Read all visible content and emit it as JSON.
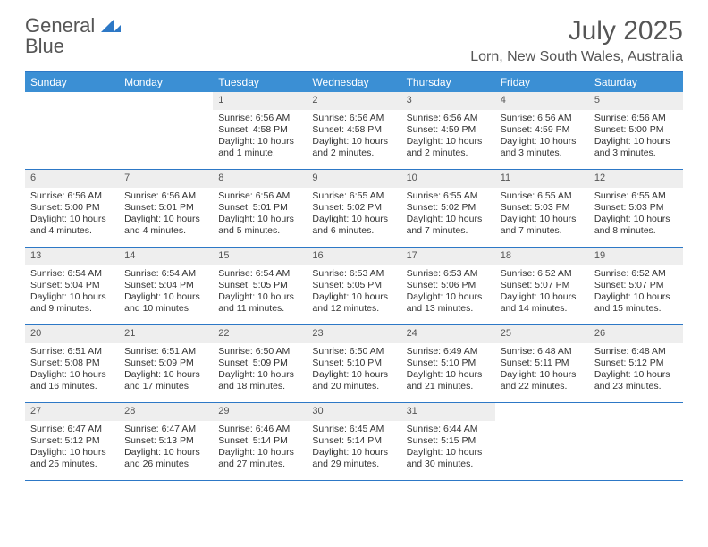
{
  "logo": {
    "word1": "General",
    "word2": "Blue"
  },
  "title": "July 2025",
  "location": "Lorn, New South Wales, Australia",
  "colors": {
    "header_bg": "#3b8fd4",
    "header_border": "#2d78c6",
    "daynum_bg": "#eeeeee",
    "text": "#333333",
    "title_text": "#555555"
  },
  "typography": {
    "title_fontsize": 30,
    "location_fontsize": 16,
    "body_fontsize": 10.5
  },
  "day_names": [
    "Sunday",
    "Monday",
    "Tuesday",
    "Wednesday",
    "Thursday",
    "Friday",
    "Saturday"
  ],
  "grid": {
    "columns": 7,
    "rows": 5,
    "leading_blanks": 2
  },
  "days": [
    {
      "n": 1,
      "sunrise": "6:56 AM",
      "sunset": "4:58 PM",
      "daylight": "10 hours and 1 minute."
    },
    {
      "n": 2,
      "sunrise": "6:56 AM",
      "sunset": "4:58 PM",
      "daylight": "10 hours and 2 minutes."
    },
    {
      "n": 3,
      "sunrise": "6:56 AM",
      "sunset": "4:59 PM",
      "daylight": "10 hours and 2 minutes."
    },
    {
      "n": 4,
      "sunrise": "6:56 AM",
      "sunset": "4:59 PM",
      "daylight": "10 hours and 3 minutes."
    },
    {
      "n": 5,
      "sunrise": "6:56 AM",
      "sunset": "5:00 PM",
      "daylight": "10 hours and 3 minutes."
    },
    {
      "n": 6,
      "sunrise": "6:56 AM",
      "sunset": "5:00 PM",
      "daylight": "10 hours and 4 minutes."
    },
    {
      "n": 7,
      "sunrise": "6:56 AM",
      "sunset": "5:01 PM",
      "daylight": "10 hours and 4 minutes."
    },
    {
      "n": 8,
      "sunrise": "6:56 AM",
      "sunset": "5:01 PM",
      "daylight": "10 hours and 5 minutes."
    },
    {
      "n": 9,
      "sunrise": "6:55 AM",
      "sunset": "5:02 PM",
      "daylight": "10 hours and 6 minutes."
    },
    {
      "n": 10,
      "sunrise": "6:55 AM",
      "sunset": "5:02 PM",
      "daylight": "10 hours and 7 minutes."
    },
    {
      "n": 11,
      "sunrise": "6:55 AM",
      "sunset": "5:03 PM",
      "daylight": "10 hours and 7 minutes."
    },
    {
      "n": 12,
      "sunrise": "6:55 AM",
      "sunset": "5:03 PM",
      "daylight": "10 hours and 8 minutes."
    },
    {
      "n": 13,
      "sunrise": "6:54 AM",
      "sunset": "5:04 PM",
      "daylight": "10 hours and 9 minutes."
    },
    {
      "n": 14,
      "sunrise": "6:54 AM",
      "sunset": "5:04 PM",
      "daylight": "10 hours and 10 minutes."
    },
    {
      "n": 15,
      "sunrise": "6:54 AM",
      "sunset": "5:05 PM",
      "daylight": "10 hours and 11 minutes."
    },
    {
      "n": 16,
      "sunrise": "6:53 AM",
      "sunset": "5:05 PM",
      "daylight": "10 hours and 12 minutes."
    },
    {
      "n": 17,
      "sunrise": "6:53 AM",
      "sunset": "5:06 PM",
      "daylight": "10 hours and 13 minutes."
    },
    {
      "n": 18,
      "sunrise": "6:52 AM",
      "sunset": "5:07 PM",
      "daylight": "10 hours and 14 minutes."
    },
    {
      "n": 19,
      "sunrise": "6:52 AM",
      "sunset": "5:07 PM",
      "daylight": "10 hours and 15 minutes."
    },
    {
      "n": 20,
      "sunrise": "6:51 AM",
      "sunset": "5:08 PM",
      "daylight": "10 hours and 16 minutes."
    },
    {
      "n": 21,
      "sunrise": "6:51 AM",
      "sunset": "5:09 PM",
      "daylight": "10 hours and 17 minutes."
    },
    {
      "n": 22,
      "sunrise": "6:50 AM",
      "sunset": "5:09 PM",
      "daylight": "10 hours and 18 minutes."
    },
    {
      "n": 23,
      "sunrise": "6:50 AM",
      "sunset": "5:10 PM",
      "daylight": "10 hours and 20 minutes."
    },
    {
      "n": 24,
      "sunrise": "6:49 AM",
      "sunset": "5:10 PM",
      "daylight": "10 hours and 21 minutes."
    },
    {
      "n": 25,
      "sunrise": "6:48 AM",
      "sunset": "5:11 PM",
      "daylight": "10 hours and 22 minutes."
    },
    {
      "n": 26,
      "sunrise": "6:48 AM",
      "sunset": "5:12 PM",
      "daylight": "10 hours and 23 minutes."
    },
    {
      "n": 27,
      "sunrise": "6:47 AM",
      "sunset": "5:12 PM",
      "daylight": "10 hours and 25 minutes."
    },
    {
      "n": 28,
      "sunrise": "6:47 AM",
      "sunset": "5:13 PM",
      "daylight": "10 hours and 26 minutes."
    },
    {
      "n": 29,
      "sunrise": "6:46 AM",
      "sunset": "5:14 PM",
      "daylight": "10 hours and 27 minutes."
    },
    {
      "n": 30,
      "sunrise": "6:45 AM",
      "sunset": "5:14 PM",
      "daylight": "10 hours and 29 minutes."
    },
    {
      "n": 31,
      "sunrise": "6:44 AM",
      "sunset": "5:15 PM",
      "daylight": "10 hours and 30 minutes."
    }
  ],
  "labels": {
    "sunrise": "Sunrise:",
    "sunset": "Sunset:",
    "daylight": "Daylight:"
  }
}
